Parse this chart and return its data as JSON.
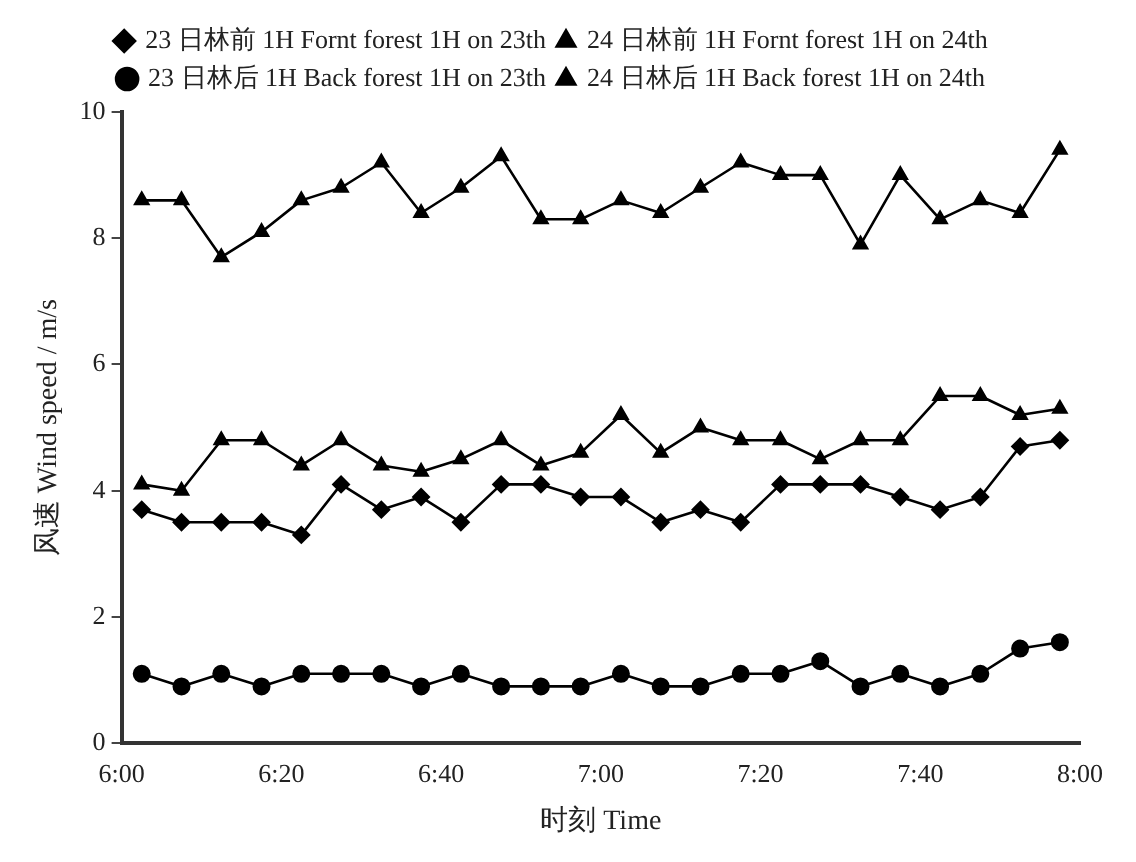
{
  "chart_data": {
    "type": "line",
    "xlabel": "时刻 Time",
    "ylabel": "风速 Wind speed / m/s",
    "x": [
      6.042,
      6.125,
      6.208,
      6.292,
      6.375,
      6.458,
      6.542,
      6.625,
      6.708,
      6.792,
      6.875,
      6.958,
      7.042,
      7.125,
      7.208,
      7.292,
      7.375,
      7.458,
      7.542,
      7.625,
      7.708,
      7.792,
      7.875,
      7.958
    ],
    "xlim": [
      6,
      8
    ],
    "xticks": [
      {
        "value": 6,
        "label": "6:00"
      },
      {
        "value": 6.3333,
        "label": "6:20"
      },
      {
        "value": 6.6667,
        "label": "6:40"
      },
      {
        "value": 7,
        "label": "7:00"
      },
      {
        "value": 7.3333,
        "label": "7:20"
      },
      {
        "value": 7.6667,
        "label": "7:40"
      },
      {
        "value": 8,
        "label": "8:00"
      }
    ],
    "ylim": [
      0,
      10
    ],
    "yticks": [
      0,
      2,
      4,
      6,
      8,
      10
    ],
    "grid": false,
    "legend": "top",
    "line_style": "solid",
    "series": [
      {
        "name": "23 日林前 1H Fornt forest 1H on 23th",
        "color": "#000000",
        "marker": "diamond",
        "values": [
          3.7,
          3.5,
          3.5,
          3.5,
          3.3,
          4.1,
          3.7,
          3.9,
          3.5,
          4.1,
          4.1,
          3.9,
          3.9,
          3.5,
          3.7,
          3.5,
          4.1,
          4.1,
          4.1,
          3.9,
          3.7,
          3.9,
          4.7,
          4.8
        ]
      },
      {
        "name": "24 日林前 1H Fornt forest 1H on 24th",
        "color": "#000000",
        "marker": "triangle",
        "values": [
          8.6,
          8.6,
          7.7,
          8.1,
          8.6,
          8.8,
          9.2,
          8.4,
          8.8,
          9.3,
          8.3,
          8.3,
          8.6,
          8.4,
          8.8,
          9.2,
          9.0,
          9.0,
          7.9,
          9.0,
          8.3,
          8.6,
          8.4,
          9.4
        ]
      },
      {
        "name": "23 日林后 1H Back forest 1H on 23th",
        "color": "#000000",
        "marker": "circle",
        "values": [
          1.1,
          0.9,
          1.1,
          0.9,
          1.1,
          1.1,
          1.1,
          0.9,
          1.1,
          0.9,
          0.9,
          0.9,
          1.1,
          0.9,
          0.9,
          1.1,
          1.1,
          1.3,
          0.9,
          1.1,
          0.9,
          1.1,
          1.5,
          1.6
        ]
      },
      {
        "name": "24 日林后 1H Back forest 1H on 24th",
        "color": "#000000",
        "marker": "triangle",
        "values": [
          4.1,
          4.0,
          4.8,
          4.8,
          4.4,
          4.8,
          4.4,
          4.3,
          4.5,
          4.8,
          4.4,
          4.6,
          5.2,
          4.6,
          5.0,
          4.8,
          4.8,
          4.5,
          4.8,
          4.8,
          5.5,
          5.5,
          5.2,
          5.3
        ]
      }
    ]
  }
}
